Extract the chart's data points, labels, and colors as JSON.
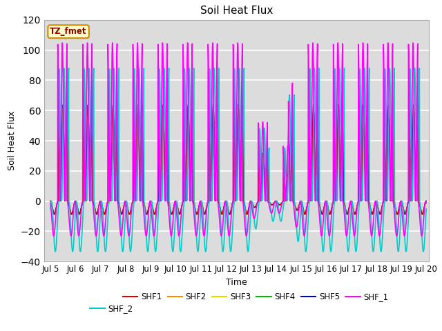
{
  "title": "Soil Heat Flux",
  "xlabel": "Time",
  "ylabel": "Soil Heat Flux",
  "ylim": [
    -40,
    120
  ],
  "xlim_start": 4.75,
  "xlim_end": 20.1,
  "background_color": "#dcdcdc",
  "grid_color": "white",
  "series_order": [
    "SHF2",
    "SHF3",
    "SHF4",
    "SHF5",
    "SHF1",
    "SHF_2",
    "SHF_1"
  ],
  "series": {
    "SHF1": {
      "color": "#dd0000",
      "lw": 1.0
    },
    "SHF2": {
      "color": "#ff8800",
      "lw": 1.0
    },
    "SHF3": {
      "color": "#dddd00",
      "lw": 1.0
    },
    "SHF4": {
      "color": "#00bb00",
      "lw": 1.0
    },
    "SHF5": {
      "color": "#0000cc",
      "lw": 1.0
    },
    "SHF_1": {
      "color": "#ff00ff",
      "lw": 1.2
    },
    "SHF_2": {
      "color": "#00cccc",
      "lw": 1.2
    }
  },
  "legend_label": "TZ_fmet",
  "legend_label_color": "#8B0000",
  "legend_label_bg": "#ffffcc",
  "legend_label_edge": "#cc8800",
  "xtick_labels": [
    "Jul 5",
    "Jul 6",
    "Jul 7",
    "Jul 8",
    "Jul 9",
    "Jul 10",
    "Jul 11",
    "Jul 12",
    "Jul 13",
    "Jul 14",
    "Jul 15",
    "Jul 16",
    "Jul 17",
    "Jul 18",
    "Jul 19",
    "Jul 20"
  ],
  "xtick_positions": [
    5,
    6,
    7,
    8,
    9,
    10,
    11,
    12,
    13,
    14,
    15,
    16,
    17,
    18,
    19,
    20
  ],
  "legend_order": [
    "SHF1",
    "SHF2",
    "SHF3",
    "SHF4",
    "SHF5",
    "SHF_1",
    "SHF_2"
  ]
}
